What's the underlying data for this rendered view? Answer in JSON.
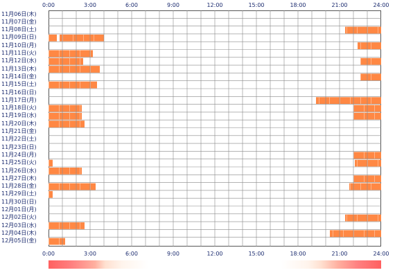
{
  "hours_top": [
    "0:00",
    "3:00",
    "6:00",
    "9:00",
    "12:00",
    "15:00",
    "18:00",
    "21:00",
    "24:00"
  ],
  "hours_bottom": [
    "0:00",
    "3:00",
    "6:00",
    "9:00",
    "12:00",
    "15:00",
    "18:00",
    "21:00",
    "24:00"
  ],
  "days": [
    "11月06日(木)",
    "11月07日(金)",
    "11月08日(土)",
    "11月09日(日)",
    "11月10日(月)",
    "11月11日(火)",
    "11月12日(水)",
    "11月13日(木)",
    "11月14日(金)",
    "11月15日(土)",
    "11月16日(日)",
    "11月17日(月)",
    "11月18日(火)",
    "11月19日(水)",
    "11月20日(木)",
    "11月21日(金)",
    "11月22日(土)",
    "11月23日(日)",
    "11月24日(月)",
    "11月25日(火)",
    "11月26日(水)",
    "11月27日(木)",
    "11月28日(金)",
    "11月29日(土)",
    "11月30日(日)",
    "12月01日(月)",
    "12月02日(火)",
    "12月03日(水)",
    "12月04日(木)",
    "12月05日(金)"
  ],
  "activity_hours": [
    [],
    [],
    [
      [
        21.4,
        24
      ]
    ],
    [
      [
        0,
        0.6
      ],
      [
        0.8,
        4.0
      ]
    ],
    [
      [
        22.3,
        24
      ]
    ],
    [
      [
        0,
        3.2
      ]
    ],
    [
      [
        0,
        2.5
      ],
      [
        22.5,
        24
      ]
    ],
    [
      [
        0,
        3.7
      ]
    ],
    [
      [
        22.5,
        24
      ]
    ],
    [
      [
        0,
        3.5
      ]
    ],
    [],
    [
      [
        19.3,
        24
      ]
    ],
    [
      [
        0,
        2.4
      ],
      [
        22.0,
        24
      ]
    ],
    [
      [
        0,
        2.4
      ],
      [
        22.0,
        24
      ]
    ],
    [
      [
        0,
        2.6
      ]
    ],
    [],
    [],
    [],
    [
      [
        22.0,
        24
      ]
    ],
    [
      [
        0,
        0.3
      ],
      [
        22.1,
        24
      ]
    ],
    [
      [
        0,
        2.4
      ]
    ],
    [
      [
        22.0,
        24
      ]
    ],
    [
      [
        0,
        3.4
      ],
      [
        21.7,
        24
      ]
    ],
    [
      [
        0,
        0.3
      ]
    ],
    [],
    [],
    [
      [
        21.4,
        24
      ]
    ],
    [
      [
        0,
        2.6
      ]
    ],
    [
      [
        20.3,
        24
      ]
    ],
    [
      [
        0,
        1.2
      ]
    ]
  ],
  "colors": {
    "bar": "#ff8844",
    "bar_light": "#ffb488",
    "grid": "#888888",
    "label": "#1a2a6e"
  }
}
